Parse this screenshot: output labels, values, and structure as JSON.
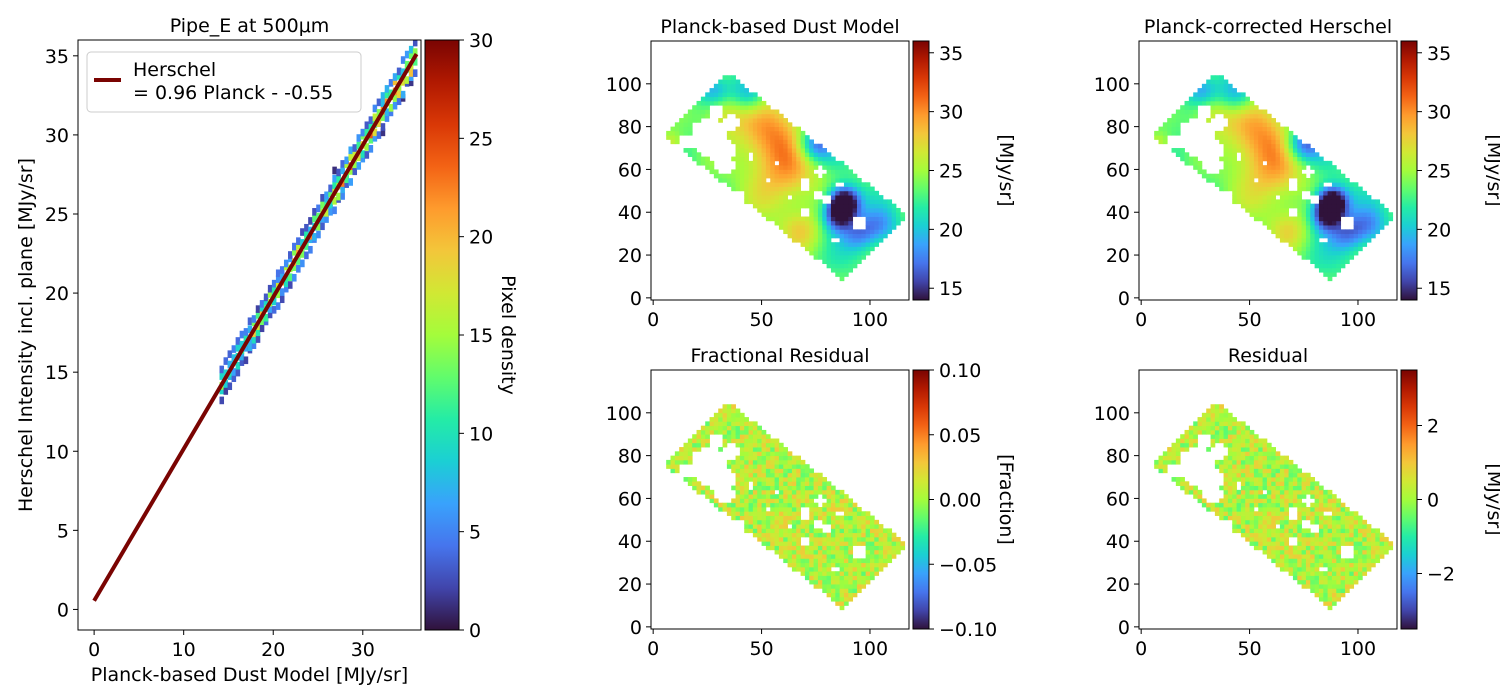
{
  "colormap": [
    "#30123b",
    "#4145ab",
    "#4675ed",
    "#39a2fc",
    "#1bcfd4",
    "#24eca6",
    "#61fc6c",
    "#a4fc3b",
    "#d1e834",
    "#f3c63a",
    "#fe9b2d",
    "#f36315",
    "#d93806",
    "#b11901",
    "#7a0402"
  ],
  "regression_color": "#7a0402",
  "chart_data": [
    {
      "type": "heatmap",
      "id": "density",
      "title": "Pipe_E at 500μm",
      "xlabel": "Planck-based Dust Model [MJy/sr]",
      "ylabel": "Herschel Intensity incl. plane [MJy/sr]",
      "xlim": [
        -1.8,
        36.5
      ],
      "ylim": [
        -1.3,
        36.0
      ],
      "xticks": [
        0,
        10,
        20,
        30
      ],
      "yticks": [
        0,
        5,
        10,
        15,
        20,
        25,
        30,
        35
      ],
      "colorbar": {
        "label": "Pixel density",
        "range": [
          0,
          30
        ],
        "ticks": [
          0,
          5,
          10,
          15,
          20,
          25,
          30
        ]
      },
      "legend": {
        "location": "upper-left",
        "line1": "Herschel",
        "line2": "= 0.96 Planck - -0.55"
      },
      "fit": {
        "slope": 0.96,
        "intercept_printed": "- -0.55",
        "intercept": 0.55,
        "x_range": [
          0,
          36
        ]
      },
      "density_ridge": {
        "x_range": [
          14,
          36
        ],
        "slope": 0.96,
        "intercept": 0.55,
        "peak_density": 30
      }
    },
    {
      "type": "heatmap",
      "id": "map1",
      "title": "Planck-based Dust Model",
      "xlim": [
        -1,
        118
      ],
      "ylim": [
        -1,
        120
      ],
      "xticks": [
        0,
        50,
        100
      ],
      "yticks": [
        0,
        20,
        40,
        60,
        80,
        100
      ],
      "colorbar": {
        "label": "[MJy/sr]",
        "range": [
          14,
          36
        ],
        "ticks": [
          15,
          20,
          25,
          30,
          35
        ]
      },
      "field": "intensity"
    },
    {
      "type": "heatmap",
      "id": "map2",
      "title": "Planck-corrected Herschel",
      "xlim": [
        -1,
        118
      ],
      "ylim": [
        -1,
        120
      ],
      "xticks": [
        0,
        50,
        100
      ],
      "yticks": [
        0,
        20,
        40,
        60,
        80,
        100
      ],
      "colorbar": {
        "label": "[MJy/sr]",
        "range": [
          14,
          36
        ],
        "ticks": [
          15,
          20,
          25,
          30,
          35
        ]
      },
      "field": "intensity"
    },
    {
      "type": "heatmap",
      "id": "map3",
      "title": "Fractional Residual",
      "xlim": [
        -1,
        118
      ],
      "ylim": [
        -1,
        120
      ],
      "xticks": [
        0,
        50,
        100
      ],
      "yticks": [
        0,
        20,
        40,
        60,
        80,
        100
      ],
      "colorbar": {
        "label": "[Fraction]",
        "range": [
          -0.1,
          0.1
        ],
        "ticks": [
          -0.1,
          -0.05,
          0.0,
          0.05,
          0.1
        ],
        "tick_labels": [
          "−0.10",
          "−0.05",
          "0.00",
          "0.05",
          "0.10"
        ]
      },
      "field": "residual"
    },
    {
      "type": "heatmap",
      "id": "map4",
      "title": "Residual",
      "xlim": [
        -1,
        118
      ],
      "ylim": [
        -1,
        120
      ],
      "xticks": [
        0,
        50,
        100
      ],
      "yticks": [
        0,
        20,
        40,
        60,
        80,
        100
      ],
      "colorbar": {
        "label": "[MJy/sr]",
        "range": [
          -3.5,
          3.5
        ],
        "ticks": [
          -2,
          0,
          2
        ],
        "tick_labels": [
          "−2",
          "0",
          "2"
        ]
      },
      "field": "residual"
    }
  ],
  "map_region": {
    "corners": [
      [
        35,
        105
      ],
      [
        118,
        38
      ],
      [
        88,
        8
      ],
      [
        5,
        76
      ]
    ],
    "holes": [
      [
        26,
        75,
        9
      ],
      [
        31,
        69,
        7
      ],
      [
        36,
        82,
        4
      ],
      [
        15,
        73,
        3
      ],
      [
        20,
        80,
        3
      ],
      [
        29,
        87,
        3
      ],
      [
        33,
        62,
        5
      ],
      [
        77,
        59,
        2.5
      ],
      [
        70,
        53,
        3
      ],
      [
        76,
        48,
        2
      ],
      [
        86,
        53,
        2
      ],
      [
        80,
        46,
        2
      ],
      [
        53,
        55,
        2
      ],
      [
        63,
        47,
        2
      ],
      [
        95,
        35,
        3
      ],
      [
        70,
        40,
        2
      ],
      [
        57,
        63,
        2
      ],
      [
        84,
        27,
        2
      ],
      [
        45,
        66,
        2
      ],
      [
        40,
        48,
        2
      ]
    ],
    "intensity_blobs": [
      [
        55,
        78,
        12,
        6
      ],
      [
        60,
        57,
        13,
        5
      ],
      [
        32,
        86,
        7,
        4
      ],
      [
        88,
        45,
        5,
        -13
      ],
      [
        75,
        72,
        6,
        -8
      ],
      [
        85,
        38,
        5,
        -8
      ],
      [
        95,
        30,
        6,
        -5
      ],
      [
        44,
        95,
        6,
        -5
      ],
      [
        68,
        32,
        7,
        4
      ],
      [
        105,
        34,
        6,
        -4
      ],
      [
        28,
        97,
        5,
        -4
      ],
      [
        8,
        72,
        4,
        4
      ]
    ],
    "intensity_base": 23
  }
}
